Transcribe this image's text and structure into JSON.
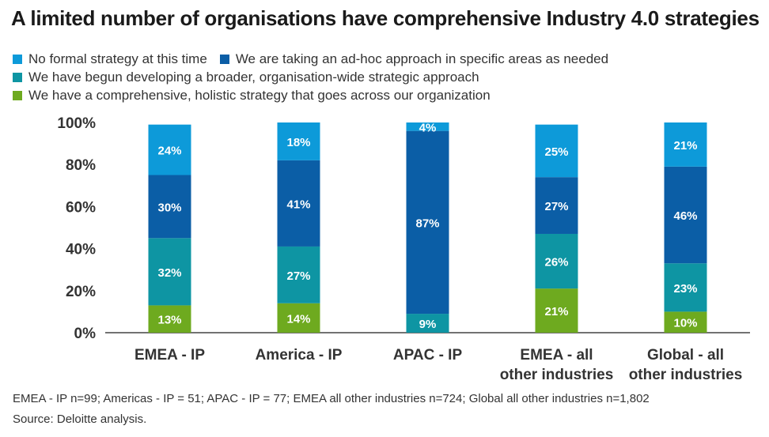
{
  "title": "A limited number of organisations have comprehensive Industry 4.0 strategies",
  "legend": [
    {
      "label": "No formal strategy at this time",
      "color": "#0d9ad9"
    },
    {
      "label": "We are taking an ad-hoc approach in specific areas as needed",
      "color": "#0b5ea6"
    },
    {
      "label": "We have begun developing a broader, organisation-wide strategic approach",
      "color": "#0e95a3"
    },
    {
      "label": "We have a comprehensive, holistic strategy that goes across our organization",
      "color": "#6eaa1f"
    }
  ],
  "footnote": "EMEA - IP n=99; Americas - IP = 51; APAC - IP = 77; EMEA all other industries n=724; Global all other industries n=1,802",
  "source": "Source: Deloitte analysis.",
  "chart_data": {
    "type": "bar",
    "stacked": true,
    "categories": [
      [
        "EMEA - IP"
      ],
      [
        "America - IP"
      ],
      [
        "APAC - IP"
      ],
      [
        "EMEA - all",
        "other industries"
      ],
      [
        "Global - all",
        "other industries"
      ]
    ],
    "series": [
      {
        "name": "We have a comprehensive, holistic strategy that goes across our organization",
        "color": "#6eaa1f",
        "values": [
          13,
          14,
          0,
          21,
          10
        ]
      },
      {
        "name": "We have begun developing a broader, organisation-wide strategic approach",
        "color": "#0e95a3",
        "values": [
          32,
          27,
          9,
          26,
          23
        ]
      },
      {
        "name": "We are taking an ad-hoc approach in specific areas as needed",
        "color": "#0b5ea6",
        "values": [
          30,
          41,
          87,
          27,
          46
        ]
      },
      {
        "name": "No formal strategy at this time",
        "color": "#0d9ad9",
        "values": [
          24,
          18,
          4,
          25,
          21
        ]
      }
    ],
    "y_ticks": [
      "0%",
      "20%",
      "40%",
      "60%",
      "80%",
      "100%"
    ],
    "ylim": [
      0,
      100
    ],
    "grid": false,
    "legend_position": "top-left"
  }
}
